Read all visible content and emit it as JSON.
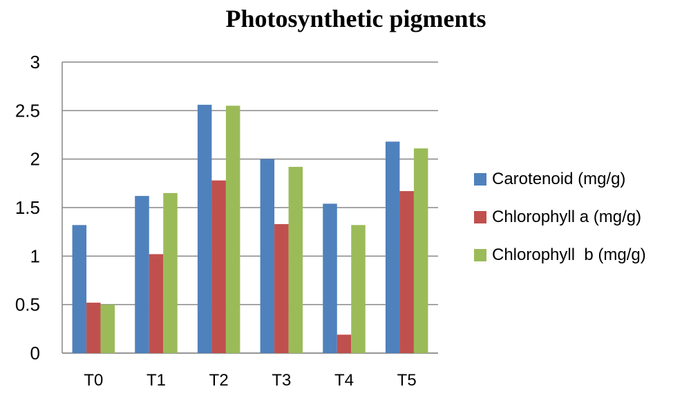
{
  "chart_data": {
    "type": "bar",
    "title": "Photosynthetic pigments",
    "xlabel": "",
    "ylabel": "",
    "categories": [
      "T0",
      "T1",
      "T2",
      "T3",
      "T4",
      "T5"
    ],
    "ylim": [
      0,
      3
    ],
    "yticks": [
      "0",
      "0.5",
      "1",
      "1.5",
      "2",
      "2.5",
      "3"
    ],
    "grid": true,
    "legend_position": "right",
    "series": [
      {
        "name": "Carotenoid (mg/g)",
        "color": "#4F81BD",
        "values": [
          1.32,
          1.62,
          2.56,
          2.0,
          1.54,
          2.18
        ]
      },
      {
        "name": "Chlorophyll a (mg/g)",
        "color": "#C0504D",
        "values": [
          0.52,
          1.02,
          1.78,
          1.33,
          0.19,
          1.67
        ]
      },
      {
        "name": "Chlorophyll  b (mg/g)",
        "color": "#9BBB59",
        "values": [
          0.5,
          1.65,
          2.55,
          1.92,
          1.32,
          2.11
        ]
      }
    ]
  }
}
